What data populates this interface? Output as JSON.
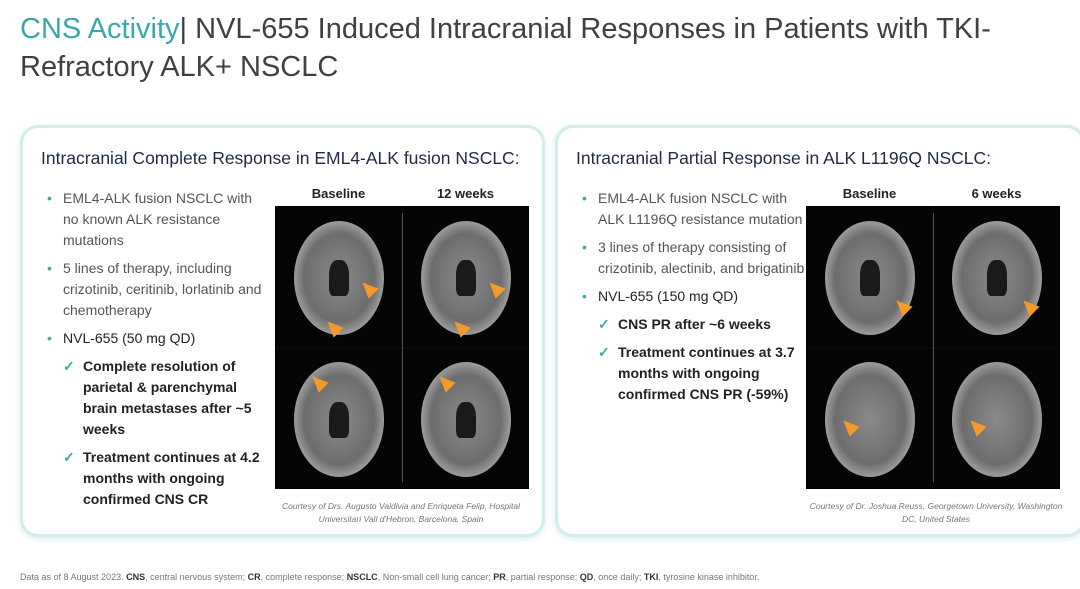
{
  "title": {
    "accent": "CNS Activity",
    "rest": "| NVL-655 Induced Intracranial Responses in Patients with TKI-Refractory ALK+ NSCLC"
  },
  "left": {
    "heading": "Intracranial Complete Response in EML4-ALK fusion NSCLC:",
    "bullets": [
      "EML4-ALK fusion NSCLC with no known ALK resistance mutations",
      "5 lines of therapy, including crizotinib, ceritinib, lorlatinib and chemotherapy",
      "NVL-655 (50 mg QD)"
    ],
    "subs": [
      "Complete resolution of parietal & parenchymal brain metastases after ~5 weeks",
      "Treatment continues at 4.2 months with ongoing confirmed CNS CR"
    ],
    "labels": [
      "Baseline",
      "12 weeks"
    ],
    "courtesy": "Courtesy of Drs. Augusto Valdivia and Enriqueta Felip, Hospital Universitari Vall d'Hebron, Barcelona, Spain"
  },
  "right": {
    "heading": "Intracranial Partial Response in ALK L1196Q NSCLC:",
    "bullets": [
      "EML4-ALK fusion NSCLC with ALK L1196Q resistance mutation",
      "3 lines of therapy consisting of crizotinib, alectinib, and brigatinib",
      "NVL-655 (150 mg QD)"
    ],
    "subs": [
      "CNS PR after ~6 weeks",
      "Treatment continues at 3.7 months with ongoing confirmed CNS PR (-59%)"
    ],
    "labels": [
      "Baseline",
      "6 weeks"
    ],
    "courtesy": "Courtesy of Dr. Joshua Reuss, Georgetown University, Washington DC, United States"
  },
  "footnote": [
    {
      "t": "Data as of 8 August 2023. "
    },
    {
      "b": "CNS"
    },
    {
      "t": ", central nervous system; "
    },
    {
      "b": "CR"
    },
    {
      "t": ", complete response; "
    },
    {
      "b": "NSCLC"
    },
    {
      "t": ", Non-small cell lung cancer; "
    },
    {
      "b": "PR"
    },
    {
      "t": ", partial response; "
    },
    {
      "b": "QD"
    },
    {
      "t": ", once daily; "
    },
    {
      "b": "TKI"
    },
    {
      "t": ", tyrosine kinase inhibitor."
    }
  ],
  "colors": {
    "accent": "#3aa9a9",
    "arrow": "#f39a2b",
    "card_border": "#d3ecec"
  }
}
